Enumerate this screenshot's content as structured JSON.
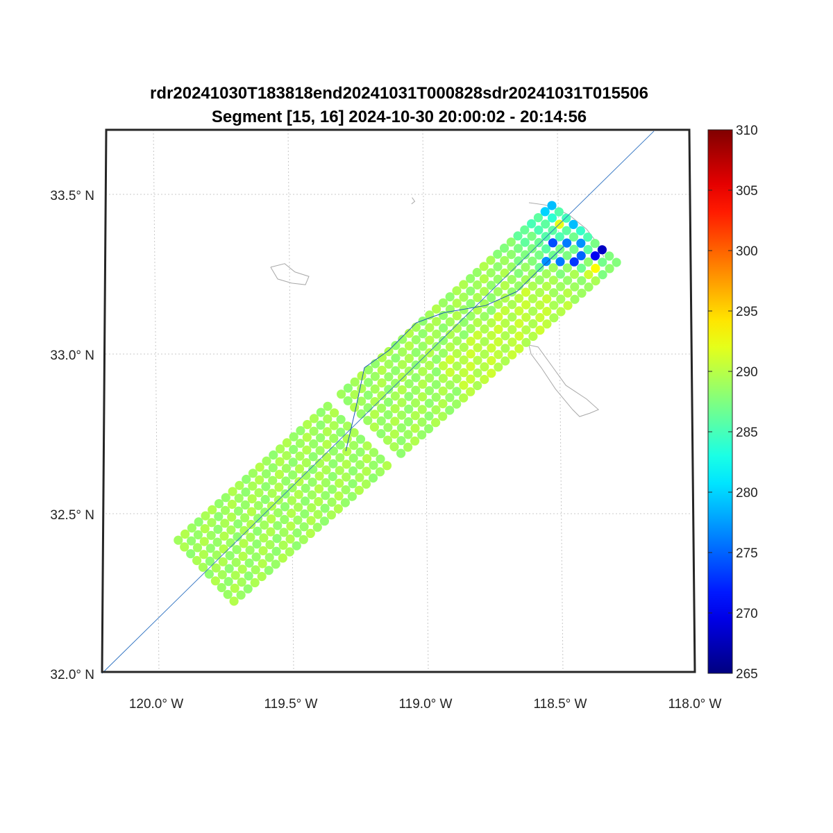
{
  "chart_data": {
    "type": "scatter",
    "title": "rdr20241030T183818end20241031T000828sdr20241031T015506",
    "subtitle": "Segment [15, 16] 2024-10-30 20:00:02 - 20:14:56",
    "xlabel": "",
    "ylabel": "",
    "xlim": [
      -120.2,
      -118.0
    ],
    "ylim": [
      32.0,
      33.7
    ],
    "grid": true,
    "x_ticks": [
      {
        "value": -120.0,
        "label": "120.0° W"
      },
      {
        "value": -119.5,
        "label": "119.5° W"
      },
      {
        "value": -119.0,
        "label": "119.0° W"
      },
      {
        "value": -118.5,
        "label": "118.5° W"
      },
      {
        "value": -118.0,
        "label": "118.0° W"
      }
    ],
    "y_ticks": [
      {
        "value": 32.0,
        "label": "32.0° N"
      },
      {
        "value": 32.5,
        "label": "32.5° N"
      },
      {
        "value": 33.0,
        "label": "33.0° N"
      },
      {
        "value": 33.5,
        "label": "33.5° N"
      }
    ],
    "colorbar": {
      "colormap": "jet",
      "range": [
        265,
        310
      ],
      "ticks": [
        "265",
        "270",
        "275",
        "280",
        "285",
        "290",
        "295",
        "300",
        "305",
        "310"
      ],
      "placement": "right"
    },
    "swath": {
      "corners": {
        "sw_left": [
          -119.918,
          32.417
        ],
        "sw_right": [
          -119.711,
          32.226
        ],
        "ne_left": [
          -118.531,
          33.465
        ],
        "ne_right": [
          -118.291,
          33.287
        ]
      },
      "along_count": 56,
      "cross_count": 10,
      "gap_along_index": 23,
      "base_value": 289,
      "ne_cool_rows": 9,
      "ne_cool_value": 284,
      "anomalies": [
        {
          "along": 52,
          "cross": 6,
          "value": 273
        },
        {
          "along": 53,
          "cross": 6,
          "value": 275
        },
        {
          "along": 54,
          "cross": 7,
          "value": 270
        },
        {
          "along": 55,
          "cross": 7,
          "value": 268
        },
        {
          "along": 53,
          "cross": 4,
          "value": 276
        },
        {
          "along": 52,
          "cross": 3,
          "value": 274
        },
        {
          "along": 51,
          "cross": 5,
          "value": 276
        },
        {
          "along": 54,
          "cross": 5,
          "value": 277
        },
        {
          "along": 50,
          "cross": 4,
          "value": 277
        },
        {
          "along": 55,
          "cross": 3,
          "value": 279
        },
        {
          "along": 53,
          "cross": 8,
          "value": 293
        },
        {
          "along": 54,
          "cross": 2,
          "value": 292
        },
        {
          "along": 52,
          "cross": 8,
          "value": 291
        },
        {
          "along": 55,
          "cross": 0,
          "value": 279
        },
        {
          "along": 54,
          "cross": 0,
          "value": 280
        }
      ]
    },
    "track_line": [
      [
        -120.201,
        32.0
      ],
      [
        -118.152,
        33.698
      ]
    ],
    "track_curve": [
      [
        -119.296,
        32.696
      ],
      [
        -119.26,
        32.826
      ],
      [
        -119.227,
        32.957
      ],
      [
        -119.137,
        33.011
      ],
      [
        -119.034,
        33.098
      ],
      [
        -118.93,
        33.13
      ],
      [
        -118.776,
        33.152
      ],
      [
        -118.66,
        33.196
      ],
      [
        -118.582,
        33.261
      ],
      [
        -118.487,
        33.337
      ]
    ],
    "coastlines": [
      [
        [
          -119.575,
          33.272
        ],
        [
          -119.523,
          33.283
        ],
        [
          -119.485,
          33.257
        ],
        [
          -119.433,
          33.243
        ],
        [
          -119.446,
          33.217
        ],
        [
          -119.497,
          33.222
        ],
        [
          -119.549,
          33.235
        ],
        [
          -119.575,
          33.272
        ]
      ],
      [
        [
          -118.616,
          33.028
        ],
        [
          -118.582,
          33.022
        ],
        [
          -118.544,
          32.978
        ],
        [
          -118.479,
          32.902
        ],
        [
          -118.402,
          32.859
        ],
        [
          -118.358,
          32.826
        ],
        [
          -118.389,
          32.815
        ],
        [
          -118.428,
          32.804
        ],
        [
          -118.454,
          32.826
        ],
        [
          -118.518,
          32.891
        ],
        [
          -118.57,
          32.957
        ],
        [
          -118.608,
          33.0
        ],
        [
          -118.616,
          33.028
        ]
      ],
      [
        [
          -118.616,
          33.474
        ],
        [
          -118.557,
          33.467
        ],
        [
          -118.518,
          33.457
        ],
        [
          -118.466,
          33.435
        ],
        [
          -118.402,
          33.391
        ],
        [
          -118.363,
          33.348
        ],
        [
          -118.338,
          33.304
        ]
      ],
      [
        [
          -119.05,
          33.49
        ],
        [
          -119.04,
          33.478
        ],
        [
          -119.052,
          33.47
        ]
      ]
    ]
  }
}
